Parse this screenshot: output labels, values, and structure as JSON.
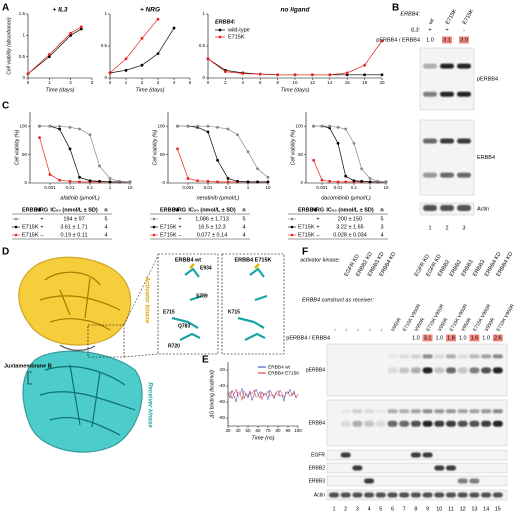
{
  "A": {
    "label": "A",
    "y_label": "Cell viability (absorbance)",
    "x_label": "Time (days)",
    "legend": {
      "title": "ERBB4:",
      "entries": [
        {
          "name": "wild-type",
          "color": "#000000"
        },
        {
          "name": "E715K",
          "color": "#e8251f"
        }
      ]
    },
    "plots": [
      {
        "title": "+ IL3",
        "xlim": [
          0,
          3
        ],
        "ylim": [
          0,
          1.5
        ],
        "xticks": [
          0,
          1,
          2,
          3
        ],
        "yticks": [
          0,
          0.5,
          1,
          1.5
        ],
        "series": [
          {
            "color": "#000000",
            "x": [
              0,
              1,
              2,
              2.5
            ],
            "y": [
              0.1,
              0.5,
              1.0,
              1.15
            ]
          },
          {
            "color": "#e8251f",
            "x": [
              0,
              1,
              2,
              2.5
            ],
            "y": [
              0.1,
              0.55,
              1.05,
              1.2
            ]
          }
        ]
      },
      {
        "title": "+ NRG",
        "xlim": [
          0,
          5
        ],
        "ylim": [
          0,
          1
        ],
        "xticks": [
          0,
          1,
          2,
          3,
          4,
          5
        ],
        "yticks": [
          0,
          0.5,
          1
        ],
        "series": [
          {
            "color": "#000000",
            "x": [
              0,
              1,
              2,
              3,
              4
            ],
            "y": [
              0.08,
              0.12,
              0.2,
              0.38,
              0.78
            ]
          },
          {
            "color": "#e8251f",
            "x": [
              0,
              1,
              2,
              3
            ],
            "y": [
              0.08,
              0.3,
              0.62,
              0.92
            ]
          }
        ]
      },
      {
        "title": "no ligand",
        "xlim": [
          0,
          20
        ],
        "ylim": [
          0,
          1
        ],
        "xticks": [
          0,
          2,
          4,
          6,
          8,
          10,
          12,
          14,
          16,
          18,
          20
        ],
        "yticks": [
          0,
          0.5,
          1
        ],
        "series": [
          {
            "color": "#000000",
            "x": [
              0,
              2,
              4,
              6,
              8,
              10,
              12,
              14,
              16,
              18,
              20
            ],
            "y": [
              0.3,
              0.12,
              0.08,
              0.06,
              0.05,
              0.05,
              0.05,
              0.05,
              0.05,
              0.05,
              0.05
            ]
          },
          {
            "color": "#e8251f",
            "x": [
              0,
              2,
              4,
              6,
              8,
              10,
              12,
              14,
              16,
              18,
              20
            ],
            "y": [
              0.3,
              0.1,
              0.07,
              0.06,
              0.05,
              0.05,
              0.05,
              0.05,
              0.08,
              0.2,
              0.58
            ]
          }
        ]
      }
    ]
  },
  "B": {
    "label": "B",
    "erbb4_label": "ERBB4:",
    "il3_label": "IL3:",
    "ratio_label": "pERBB4 / ERBB4",
    "highlight_color": "#f28b82",
    "lanes": [
      {
        "erbb4": "wt",
        "il3": "+",
        "ratio": "1.0",
        "highlight": false
      },
      {
        "erbb4": "E715K",
        "il3": "+",
        "ratio": "3.1",
        "highlight": true
      },
      {
        "erbb4": "E715K",
        "il3": "-",
        "ratio": "3.0",
        "highlight": true
      }
    ],
    "blots": [
      "pERBB4",
      "ERBB4",
      "Actin"
    ],
    "lane_numbers": [
      1,
      2,
      3
    ]
  },
  "C": {
    "label": "C",
    "y_label": "Cell viability (%)",
    "x_log": true,
    "table_header": {
      "erbb4": "ERBB4",
      "nrg": "NRG",
      "ic50": "IC₅₀ (nmol/L ± SD)",
      "n": "n"
    },
    "plots": [
      {
        "x_label": "afatinib (μmol/L)",
        "xlim": [
          0.0001,
          10
        ],
        "ylim": [
          0,
          125
        ],
        "xticks": [
          0.001,
          0.01,
          0.1,
          1,
          10
        ],
        "yticks": [
          0,
          50,
          100
        ],
        "series": [
          {
            "color": "#e8251f",
            "x": [
              0.0003,
              0.001,
              0.003,
              0.01,
              0.03,
              0.1,
              0.3,
              1,
              3,
              10
            ],
            "y": [
              80,
              15,
              5,
              3,
              2,
              2,
              2,
              2,
              2,
              2
            ]
          },
          {
            "color": "#000000",
            "x": [
              0.0003,
              0.001,
              0.003,
              0.01,
              0.03,
              0.1,
              0.3,
              1,
              3,
              10
            ],
            "y": [
              100,
              100,
              95,
              60,
              10,
              4,
              3,
              2,
              2,
              2
            ]
          },
          {
            "color": "#888888",
            "x": [
              0.0003,
              0.001,
              0.003,
              0.01,
              0.03,
              0.1,
              0.3,
              1,
              3,
              10
            ],
            "y": [
              100,
              100,
              100,
              98,
              95,
              85,
              30,
              8,
              3,
              2
            ]
          }
        ],
        "table": [
          {
            "color": "#888888",
            "nrg": "+",
            "ic50": "194 ± 97",
            "n": 5
          },
          {
            "color": "#000000",
            "erbb4": "E715K",
            "nrg": "+",
            "ic50": "3.61 ± 1.71",
            "n": 4
          },
          {
            "color": "#e8251f",
            "erbb4": "E715K",
            "nrg": "–",
            "ic50": "0.19 ± 0.11",
            "n": 4
          }
        ]
      },
      {
        "x_label": "neratinib (μmol/L)",
        "xlim": [
          0.0001,
          10
        ],
        "ylim": [
          0,
          125
        ],
        "xticks": [
          0.001,
          0.01,
          0.1,
          1,
          10
        ],
        "yticks": [
          0,
          50,
          100
        ],
        "series": [
          {
            "color": "#e8251f",
            "x": [
              0.0003,
              0.001,
              0.003,
              0.01,
              0.03,
              0.1,
              0.3,
              1,
              3,
              10
            ],
            "y": [
              60,
              8,
              4,
              3,
              2,
              2,
              2,
              2,
              2,
              2
            ]
          },
          {
            "color": "#000000",
            "x": [
              0.0003,
              0.001,
              0.003,
              0.01,
              0.03,
              0.1,
              0.3,
              1,
              3,
              10
            ],
            "y": [
              100,
              100,
              98,
              90,
              40,
              8,
              3,
              2,
              2,
              2
            ]
          },
          {
            "color": "#888888",
            "x": [
              0.0003,
              0.001,
              0.003,
              0.01,
              0.03,
              0.1,
              0.3,
              1,
              3,
              10
            ],
            "y": [
              100,
              100,
              100,
              100,
              98,
              95,
              85,
              55,
              25,
              10
            ]
          }
        ],
        "table": [
          {
            "color": "#888888",
            "nrg": "+",
            "ic50": "1,086 ± 1,713",
            "n": 5
          },
          {
            "color": "#000000",
            "erbb4": "E715K",
            "nrg": "+",
            "ic50": "16.5 ± 12.3",
            "n": 4
          },
          {
            "color": "#e8251f",
            "erbb4": "E715K",
            "nrg": "–",
            "ic50": "0.077 ± 0.14",
            "n": 4
          }
        ]
      },
      {
        "x_label": "dacomitinib (μmol/L)",
        "xlim": [
          0.0001,
          10
        ],
        "ylim": [
          0,
          125
        ],
        "xticks": [
          0.001,
          0.01,
          0.1,
          1,
          10
        ],
        "yticks": [
          0,
          50,
          100
        ],
        "series": [
          {
            "color": "#e8251f",
            "x": [
              0.0003,
              0.001,
              0.003,
              0.01,
              0.03,
              0.1,
              0.3,
              1,
              3,
              10
            ],
            "y": [
              40,
              5,
              3,
              2,
              2,
              2,
              2,
              2,
              2,
              2
            ]
          },
          {
            "color": "#000000",
            "x": [
              0.0003,
              0.001,
              0.003,
              0.01,
              0.03,
              0.1,
              0.3,
              1,
              3,
              10
            ],
            "y": [
              100,
              100,
              97,
              70,
              12,
              4,
              3,
              2,
              2,
              2
            ]
          },
          {
            "color": "#888888",
            "x": [
              0.0003,
              0.001,
              0.003,
              0.01,
              0.03,
              0.1,
              0.3,
              1,
              3,
              10
            ],
            "y": [
              100,
              100,
              100,
              98,
              95,
              70,
              25,
              8,
              3,
              2
            ]
          }
        ],
        "table": [
          {
            "color": "#888888",
            "nrg": "+",
            "ic50": "200 ± 150",
            "n": 5
          },
          {
            "color": "#000000",
            "erbb4": "E715K",
            "nrg": "+",
            "ic50": "3.22 ± 1.65",
            "n": 3
          },
          {
            "color": "#e8251f",
            "erbb4": "E715K",
            "nrg": "–",
            "ic50": "0.028 ± 0.034",
            "n": 4
          }
        ]
      }
    ]
  },
  "D": {
    "label": "D",
    "activator": "Activator kinase",
    "receiver": "Receiver kinase",
    "juxtamembrane": "Juxtamembrane B",
    "inset_wt": {
      "title": "ERBB4 wt",
      "residues": [
        "E934",
        "S789",
        "E715",
        "Q783",
        "R720"
      ]
    },
    "inset_mut": {
      "title": "ERBB4 E715K",
      "residues": [
        "K715"
      ]
    }
  },
  "E": {
    "label": "E",
    "x_label": "Time (ns)",
    "y_label": "ΔG binding (kcal/mol)",
    "xlim": [
      30,
      100
    ],
    "ylim": [
      -90,
      -10
    ],
    "xticks": [
      30,
      40,
      50,
      60,
      70,
      80,
      90,
      100
    ],
    "yticks": [
      -80,
      -60,
      -40,
      -20
    ],
    "series": [
      {
        "name": "ERBB4 wt",
        "color": "#2a3fc0",
        "x": [
          30,
          32,
          34,
          36,
          38,
          40,
          42,
          44,
          46,
          48,
          50,
          52,
          54,
          56,
          58,
          60,
          62,
          64,
          66,
          68,
          70,
          72,
          74,
          76,
          78,
          80,
          82,
          84,
          86,
          88,
          90,
          92,
          94,
          96,
          98,
          100
        ],
        "y": [
          -48,
          -55,
          -45,
          -52,
          -60,
          -47,
          -50,
          -43,
          -56,
          -49,
          -53,
          -46,
          -58,
          -51,
          -44,
          -50,
          -55,
          -47,
          -52,
          -49,
          -57,
          -45,
          -50,
          -54,
          -48,
          -46,
          -53,
          -51,
          -59,
          -47,
          -50,
          -44,
          -52,
          -48,
          -55,
          -50
        ]
      },
      {
        "name": "ERBB4 E715K",
        "color": "#e8251f",
        "x": [
          30,
          32,
          34,
          36,
          38,
          40,
          42,
          44,
          46,
          48,
          50,
          52,
          54,
          56,
          58,
          60,
          62,
          64,
          66,
          68,
          70,
          72,
          74,
          76,
          78,
          80,
          82,
          84,
          86,
          88,
          90,
          92,
          94,
          96,
          98,
          100
        ],
        "y": [
          -52,
          -47,
          -56,
          -50,
          -44,
          -53,
          -49,
          -58,
          -46,
          -51,
          -55,
          -48,
          -50,
          -45,
          -54,
          -52,
          -47,
          -57,
          -49,
          -51,
          -46,
          -53,
          -50,
          -56,
          -48,
          -52,
          -45,
          -50,
          -54,
          -49,
          -47,
          -53,
          -51,
          -46,
          -55,
          -50
        ]
      }
    ]
  },
  "F": {
    "label": "F",
    "activator_label": "activator kinase:",
    "receiver_label": "ERBB4 construct as receiver:",
    "ratio_label": "pERBB4 / ERBB4",
    "highlight_color": "#f28b82",
    "lanes": [
      {
        "receiver": "–"
      },
      {
        "activator": "EGFR KD",
        "receiver": "–"
      },
      {
        "activator": "ERBB2 KD",
        "receiver": "–"
      },
      {
        "activator": "ERBB3 KD",
        "receiver": "–"
      },
      {
        "activator": "ERBB4 KD",
        "receiver": "–"
      },
      {
        "receiver": "V950R"
      },
      {
        "receiver": "E715K V950R"
      },
      {
        "activator": "EGFR KD",
        "receiver": "V950R",
        "ratio": "1.0",
        "highlight": false
      },
      {
        "activator": "EGFR KD",
        "receiver": "E715K V950R",
        "ratio": "3.1",
        "highlight": true
      },
      {
        "activator": "ERBB2",
        "receiver": "V950R",
        "ratio": "1.0",
        "highlight": false
      },
      {
        "activator": "ERBB2",
        "receiver": "E715K V950R",
        "ratio": "1.8",
        "highlight": true
      },
      {
        "activator": "ERBB3",
        "receiver": "V950R",
        "ratio": "1.0",
        "highlight": false
      },
      {
        "activator": "ERBB3",
        "receiver": "E715K V950R",
        "ratio": "1.6",
        "highlight": true
      },
      {
        "activator": "ERBB4 KD",
        "receiver": "V950R",
        "ratio": "1.0",
        "highlight": false
      },
      {
        "activator": "ERBB4 KD",
        "receiver": "E715K V950R",
        "ratio": "2.6",
        "highlight": true
      }
    ],
    "blots": [
      "pERBB4",
      "ERBB4",
      "EGFR",
      "ERBB2",
      "ERBB3",
      "Actin"
    ],
    "lane_numbers": [
      1,
      2,
      3,
      4,
      5,
      6,
      7,
      8,
      9,
      10,
      11,
      12,
      13,
      14,
      15
    ]
  }
}
